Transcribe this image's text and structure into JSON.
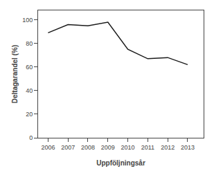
{
  "chart_data": {
    "type": "line",
    "x": [
      2006,
      2007,
      2008,
      2009,
      2010,
      2011,
      2012,
      2013
    ],
    "values": [
      89,
      96,
      95,
      98,
      75,
      67,
      68,
      62
    ],
    "color": "#1a1a1a",
    "xlabel": "Uppföljningsår",
    "ylabel": "Deltagarandel (%)",
    "xlim": [
      2005.5,
      2013.8
    ],
    "ylim": [
      0,
      108
    ],
    "xticks": [
      2006,
      2007,
      2008,
      2009,
      2010,
      2011,
      2012,
      2013
    ],
    "yticks": [
      0,
      20,
      40,
      60,
      80,
      100
    ],
    "grid": false
  }
}
